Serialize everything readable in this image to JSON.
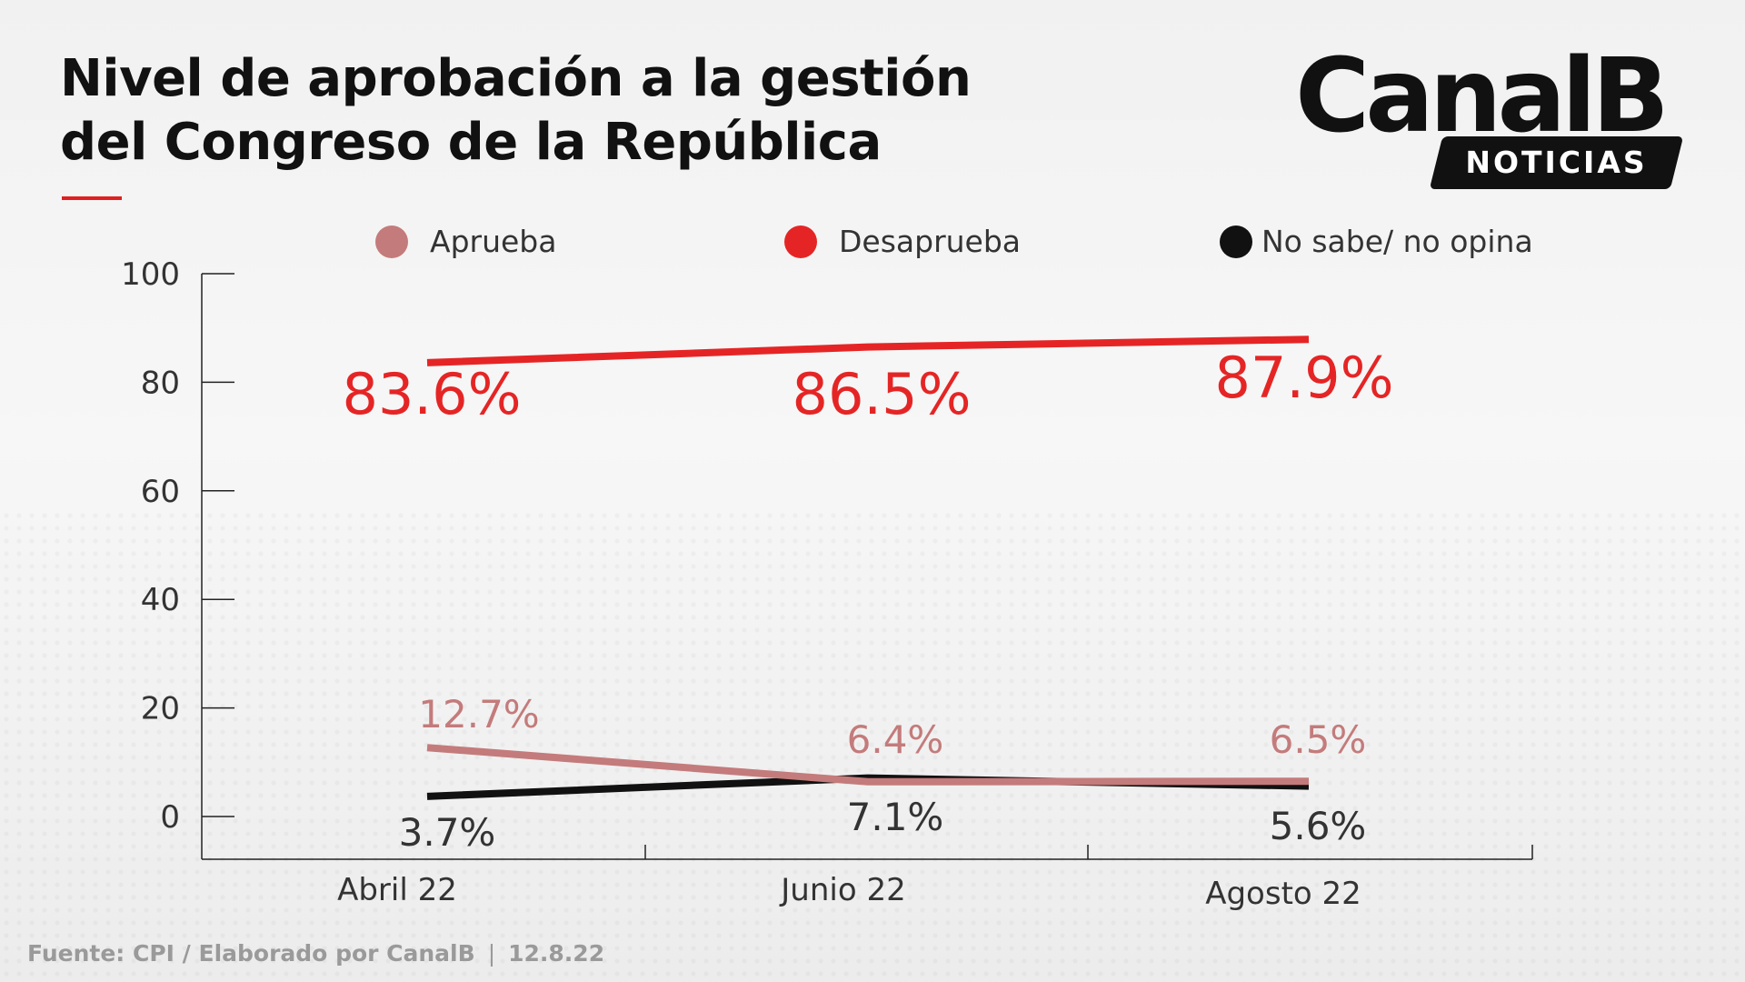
{
  "title": {
    "line1": "Nivel de aprobación a la gestión",
    "line2": "del Congreso de la República"
  },
  "logo": {
    "name": "CanalB",
    "badge": "NOTICIAS"
  },
  "footer": {
    "source": "Fuente: CPI / Elaborado por CanalB",
    "date": "12.8.22"
  },
  "chart_data": {
    "type": "line",
    "categories": [
      "Abril 22",
      "Junio 22",
      "Agosto 22"
    ],
    "ylim": [
      0,
      100
    ],
    "yticks": [
      0,
      20,
      40,
      60,
      80,
      100
    ],
    "grid": false,
    "legend_position": "top",
    "series": [
      {
        "name": "Aprueba",
        "color": "#c47b7b",
        "values": [
          12.7,
          6.4,
          6.5
        ],
        "labels": [
          "12.7%",
          "6.4%",
          "6.5%"
        ]
      },
      {
        "name": "Desaprueba",
        "color": "#e52525",
        "values": [
          83.6,
          86.5,
          87.9
        ],
        "labels": [
          "83.6%",
          "86.5%",
          "87.9%"
        ]
      },
      {
        "name": "No sabe/ no opina",
        "color": "#111111",
        "values": [
          3.7,
          7.1,
          5.6
        ],
        "labels": [
          "3.7%",
          "7.1%",
          "5.6%"
        ]
      }
    ]
  }
}
